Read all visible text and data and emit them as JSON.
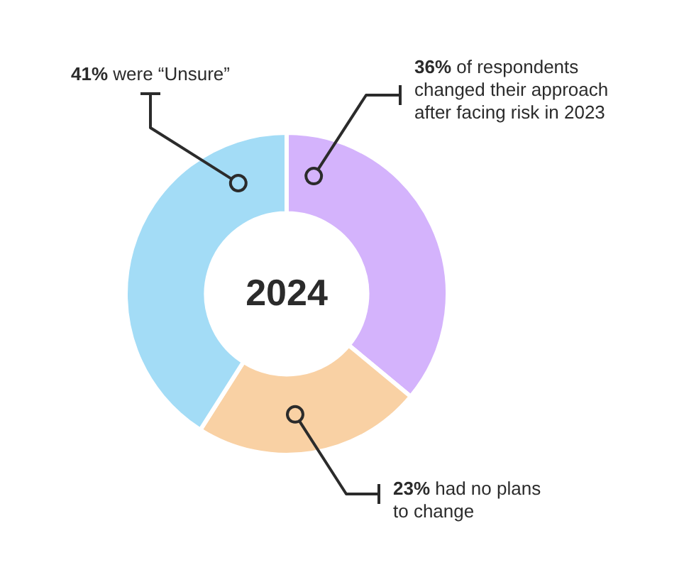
{
  "chart_data": {
    "type": "donut",
    "title": "2024",
    "categories": [
      "of respondents\nchanged their approach\nafter facing risk in 2023",
      "had no plans\nto change",
      "were “Unsure”"
    ],
    "values": [
      36,
      23,
      41
    ],
    "colors": [
      "#d4b3fc",
      "#f9d1a4",
      "#a3dcf6"
    ],
    "value_labels": [
      "36%",
      "23%",
      "41%"
    ],
    "legend": false
  }
}
